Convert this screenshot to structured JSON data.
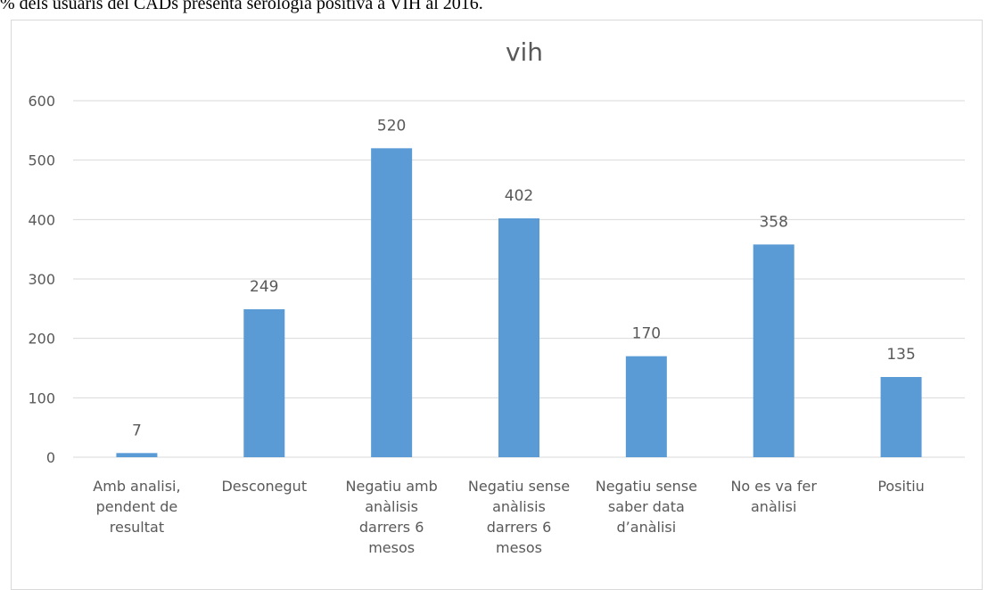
{
  "header": {
    "text": "% dels usuaris del CADs presenta serologia positiva a VIH al 2016."
  },
  "chart_data": {
    "type": "bar",
    "title": "vih",
    "xlabel": "",
    "ylabel": "",
    "ylim": [
      0,
      600
    ],
    "yticks": [
      0,
      100,
      200,
      300,
      400,
      500,
      600
    ],
    "grid": true,
    "legend": "none",
    "categories": [
      "Amb analisi, pendent de resultat",
      "Desconegut",
      "Negatiu amb anàlisis darrers 6 mesos",
      "Negatiu sense anàlisis darrers 6 mesos",
      "Negatiu sense saber data d'anàlisi",
      "No es va fer anàlisi",
      "Positiu"
    ],
    "category_lines": [
      [
        "Amb analisi,",
        "pendent de",
        "resultat"
      ],
      [
        "Desconegut"
      ],
      [
        "Negatiu amb",
        "anàlisis",
        "darrers 6",
        "mesos"
      ],
      [
        "Negatiu sense",
        "anàlisis",
        "darrers 6",
        "mesos"
      ],
      [
        "Negatiu sense",
        "saber data",
        "d’anàlisi"
      ],
      [
        "No es va fer",
        "anàlisi"
      ],
      [
        "Positiu"
      ]
    ],
    "values": [
      7,
      249,
      520,
      402,
      170,
      358,
      135
    ],
    "data_labels": [
      "7",
      "249",
      "520",
      "402",
      "170",
      "358",
      "135"
    ],
    "colors": {
      "bar": "#5b9bd5",
      "grid": "#d9d9d9",
      "text": "#595959"
    }
  }
}
